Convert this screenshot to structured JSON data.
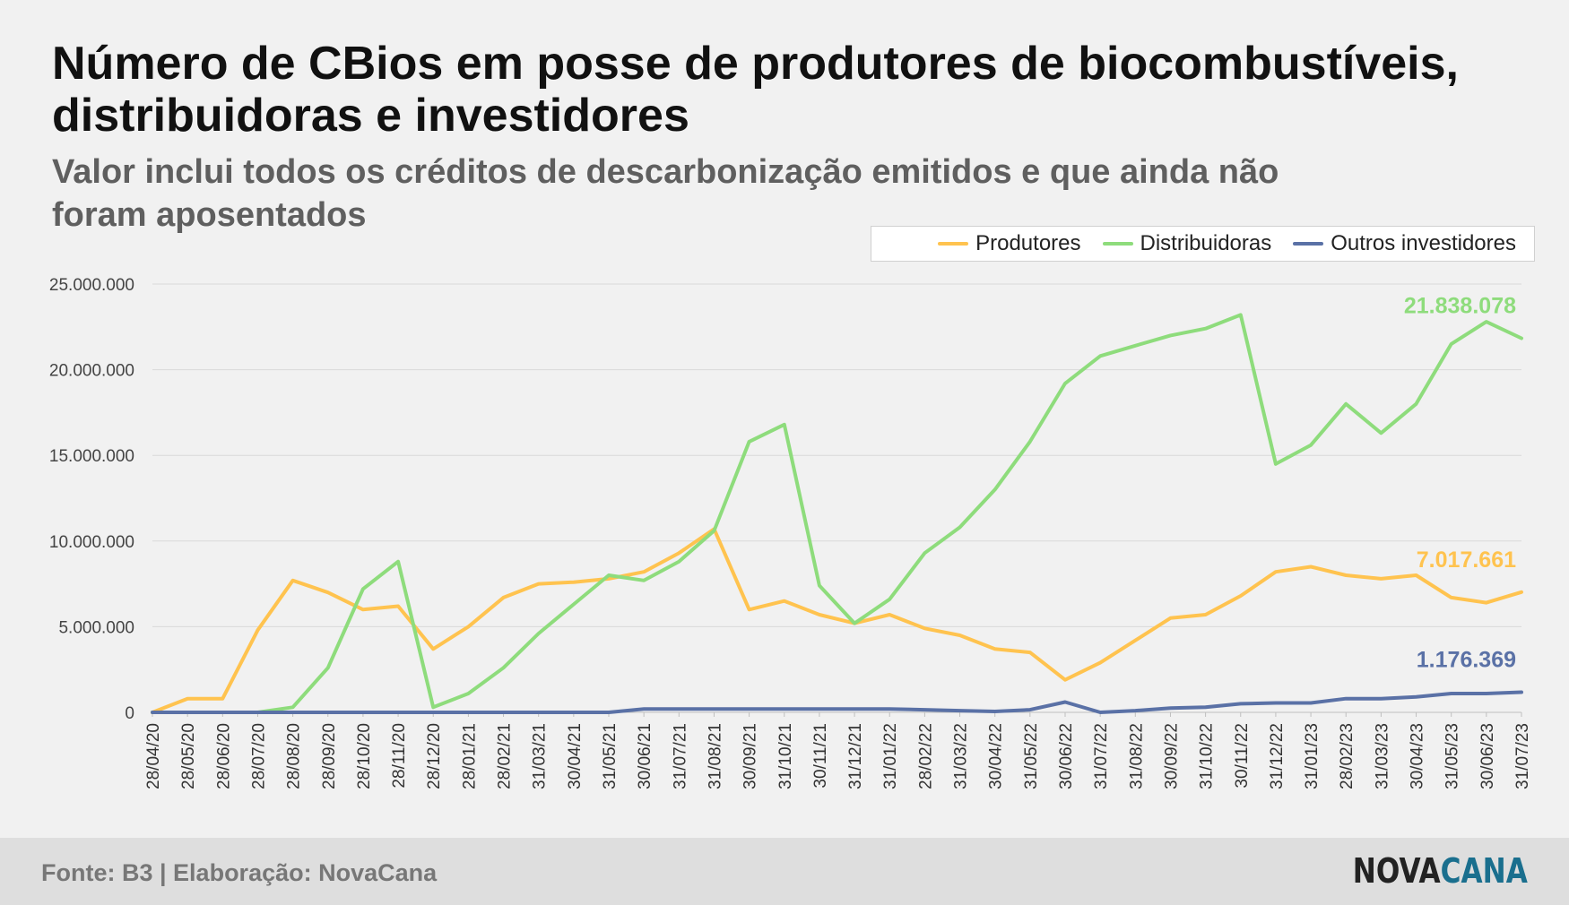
{
  "header": {
    "title": "Número de CBios em posse de produtores de biocombustíveis, distribuidoras e investidores",
    "subtitle": "Valor inclui todos os créditos de descarbonização emitidos e que ainda não foram aposentados"
  },
  "footer": {
    "source": "Fonte: B3 | Elaboração: NovaCana",
    "logo_part1": "NOVA",
    "logo_part2": "CANA"
  },
  "chart_data": {
    "type": "line",
    "title": "Número de CBios em posse de produtores de biocombustíveis, distribuidoras e investidores",
    "subtitle": "Valor inclui todos os créditos de descarbonização emitidos e que ainda não foram aposentados",
    "xlabel": "",
    "ylabel": "",
    "ylim": [
      0,
      25000000
    ],
    "y_ticks": [
      0,
      5000000,
      10000000,
      15000000,
      20000000,
      25000000
    ],
    "y_tick_labels": [
      "0",
      "5.000.000",
      "10.000.000",
      "15.000.000",
      "20.000.000",
      "25.000.000"
    ],
    "x_tick_labels": [
      "28/04/20",
      "28/05/20",
      "28/06/20",
      "28/07/20",
      "28/08/20",
      "28/09/20",
      "28/10/20",
      "28/11/20",
      "28/12/20",
      "28/01/21",
      "28/02/21",
      "31/03/21",
      "30/04/21",
      "31/05/21",
      "30/06/21",
      "31/07/21",
      "31/08/21",
      "30/09/21",
      "31/10/21",
      "30/11/21",
      "31/12/21",
      "31/01/22",
      "28/02/22",
      "31/03/22",
      "30/04/22",
      "31/05/22",
      "30/06/22",
      "31/07/22",
      "31/08/22",
      "30/09/22",
      "31/10/22",
      "30/11/22",
      "31/12/22",
      "31/01/23",
      "28/02/23",
      "31/03/23",
      "30/04/23",
      "31/05/23",
      "30/06/23",
      "31/07/23"
    ],
    "grid": true,
    "legend_position": "top-right",
    "series": [
      {
        "name": "Produtores",
        "color": "#ffc34f",
        "values": [
          0,
          800000,
          800000,
          4800000,
          7700000,
          7000000,
          6000000,
          6200000,
          3700000,
          5000000,
          6700000,
          7500000,
          7600000,
          7800000,
          8200000,
          9300000,
          10700000,
          6000000,
          6500000,
          5700000,
          5200000,
          5700000,
          4900000,
          4500000,
          3700000,
          3500000,
          1900000,
          2900000,
          4200000,
          5500000,
          5700000,
          6800000,
          8200000,
          8500000,
          8000000,
          7800000,
          8000000,
          6700000,
          6400000,
          7017661
        ],
        "end_label": "7.017.661"
      },
      {
        "name": "Distribuidoras",
        "color": "#8edc7c",
        "values": [
          0,
          0,
          0,
          0,
          300000,
          2600000,
          7200000,
          8800000,
          300000,
          1100000,
          2600000,
          4600000,
          6300000,
          8000000,
          7700000,
          8800000,
          10600000,
          15800000,
          16800000,
          7400000,
          5200000,
          6600000,
          9300000,
          10800000,
          13000000,
          15800000,
          19200000,
          20800000,
          21400000,
          22000000,
          22400000,
          23200000,
          14500000,
          15600000,
          18000000,
          16300000,
          18000000,
          21500000,
          22800000,
          21838078
        ],
        "end_label": "21.838.078"
      },
      {
        "name": "Outros investidores",
        "color": "#5a71a6",
        "values": [
          0,
          0,
          0,
          0,
          0,
          0,
          0,
          0,
          0,
          0,
          0,
          0,
          0,
          0,
          200000,
          200000,
          200000,
          200000,
          200000,
          200000,
          200000,
          200000,
          150000,
          100000,
          50000,
          150000,
          600000,
          0,
          100000,
          250000,
          300000,
          500000,
          550000,
          550000,
          800000,
          800000,
          900000,
          1100000,
          1100000,
          1176369
        ],
        "end_label": "1.176.369"
      }
    ]
  }
}
